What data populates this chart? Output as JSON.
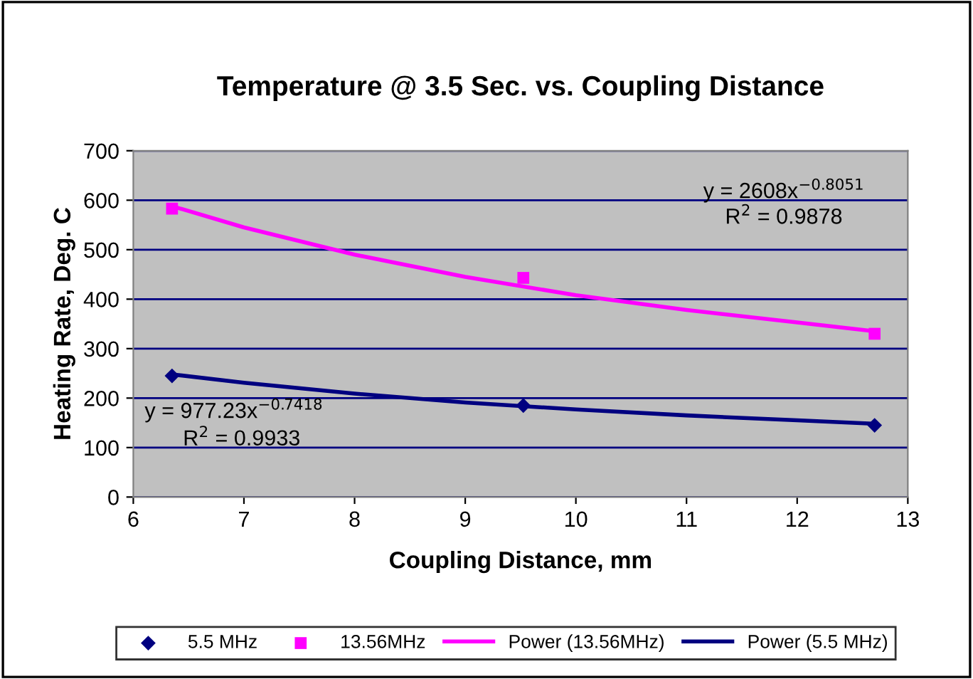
{
  "chart_data": {
    "type": "scatter",
    "title": "Temperature @ 3.5 Sec. vs. Coupling Distance",
    "xlabel": "Coupling Distance, mm",
    "ylabel": "Heating Rate, Deg. C",
    "xlim": [
      6,
      13
    ],
    "xticks": [
      6,
      7,
      8,
      9,
      10,
      11,
      12,
      13
    ],
    "ylim": [
      0,
      700
    ],
    "yticks": [
      0,
      100,
      200,
      300,
      400,
      500,
      600,
      700
    ],
    "grid": "y",
    "legend": "bottom",
    "series": [
      {
        "name": "5.5 MHz",
        "marker": "diamond",
        "color": "#000080",
        "x": [
          6.35,
          9.525,
          12.7
        ],
        "values": [
          245,
          185,
          145
        ]
      },
      {
        "name": "13.56MHz",
        "marker": "square",
        "color": "#ff00ff",
        "x": [
          6.35,
          9.525,
          12.7
        ],
        "values": [
          583,
          443,
          330
        ]
      },
      {
        "name": "Power (13.56MHz)",
        "type": "line",
        "marker": "none",
        "color": "#ff00ff",
        "x": [
          6.35,
          7,
          8,
          9,
          10,
          11,
          12,
          12.7
        ],
        "values": [
          588,
          545,
          490,
          445,
          408,
          378,
          353,
          335
        ]
      },
      {
        "name": "Power (5.5 MHz)",
        "type": "line",
        "marker": "none",
        "color": "#000080",
        "x": [
          6.35,
          7,
          8,
          9,
          10,
          11,
          12,
          12.7
        ],
        "values": [
          248,
          231,
          209,
          191,
          177,
          165,
          155,
          148
        ]
      }
    ],
    "annotations": [
      "y = 2608x$^{−0.8051}$",
      "R$^{2}$ = 0.9878",
      "y = 977.23x$^{−0.7418}$",
      "R$^{2}$ = 0.9933"
    ]
  }
}
